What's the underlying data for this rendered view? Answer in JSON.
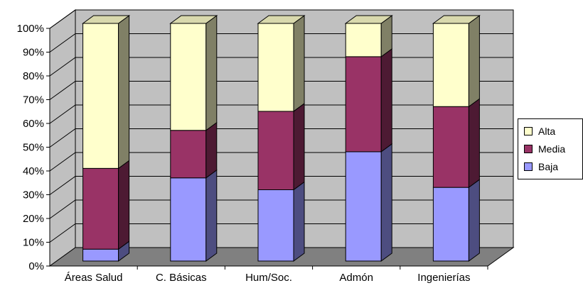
{
  "chart_data": {
    "type": "bar",
    "stacked": true,
    "normalized_percent": true,
    "three_d": true,
    "categories": [
      "Áreas Salud",
      "C. Básicas",
      "Hum/Soc.",
      "Admón",
      "Ingenierías"
    ],
    "series": [
      {
        "name": "Baja",
        "color": "#9999ff",
        "values": [
          5,
          35,
          30,
          46,
          31
        ]
      },
      {
        "name": "Media",
        "color": "#993366",
        "values": [
          34,
          20,
          33,
          40,
          34
        ]
      },
      {
        "name": "Alta",
        "color": "#ffffcc",
        "values": [
          61,
          45,
          37,
          14,
          35
        ]
      }
    ],
    "y_ticks": [
      "0%",
      "10%",
      "20%",
      "30%",
      "40%",
      "50%",
      "60%",
      "70%",
      "80%",
      "90%",
      "100%"
    ],
    "ylim": [
      0,
      100
    ],
    "grid": true,
    "legend_placement": "right",
    "title": "",
    "xlabel": "",
    "ylabel": ""
  },
  "colors": {
    "wall": "#c0c0c0",
    "floor": "#808080",
    "grid": "#000000"
  }
}
